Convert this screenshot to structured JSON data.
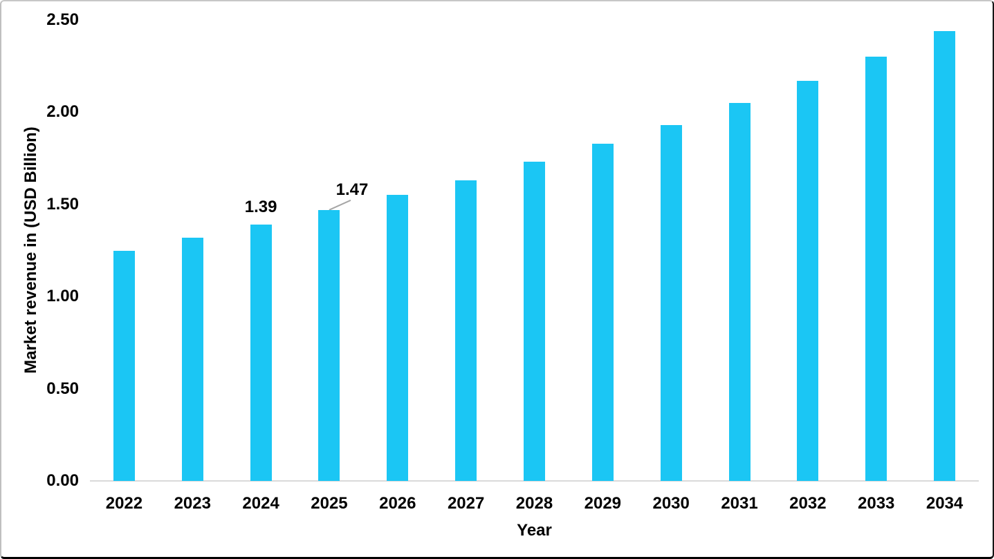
{
  "chart_data": {
    "type": "bar",
    "title": "",
    "xlabel": "Year",
    "ylabel": "Market revenue in (USD Billion)",
    "categories": [
      "2022",
      "2023",
      "2024",
      "2025",
      "2026",
      "2027",
      "2028",
      "2029",
      "2030",
      "2031",
      "2032",
      "2033",
      "2034"
    ],
    "values": [
      1.25,
      1.32,
      1.39,
      1.47,
      1.55,
      1.63,
      1.73,
      1.83,
      1.93,
      2.05,
      2.17,
      2.3,
      2.44
    ],
    "yticks": [
      "0.00",
      "0.50",
      "1.00",
      "1.50",
      "2.00",
      "2.50"
    ],
    "ylim": [
      0,
      2.5
    ],
    "grid": false,
    "legend": false,
    "data_labels": [
      {
        "category": "2024",
        "text": "1.39",
        "dx": 0,
        "dy": 0,
        "leader_line": false
      },
      {
        "category": "2025",
        "text": "1.47",
        "dx": 33,
        "dy": -4,
        "leader_line": true
      }
    ],
    "colors": {
      "bar": "#1bc6f4",
      "axis_line": "#d9d9d9",
      "leader_line": "#a6a6a6",
      "text": "#000000"
    }
  }
}
